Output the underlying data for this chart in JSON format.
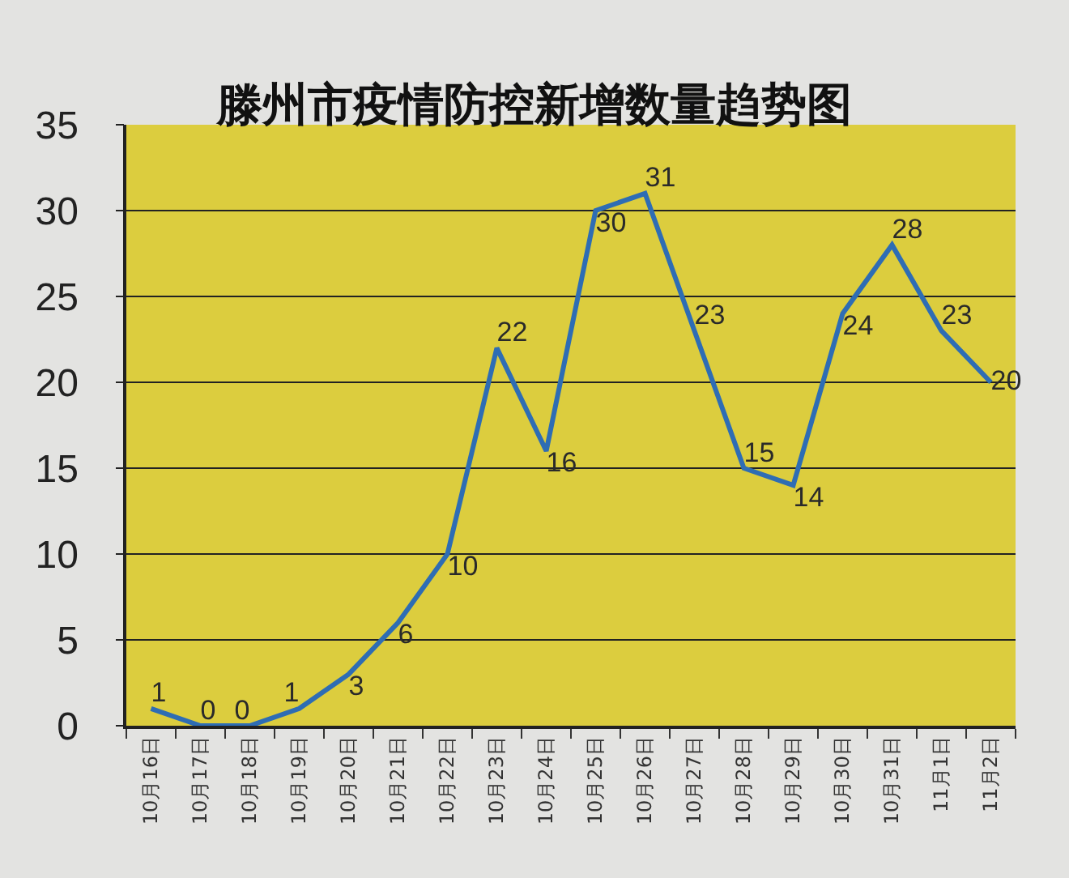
{
  "chart_data": {
    "type": "line",
    "title": "滕州市疫情防控新增数量趋势图",
    "categories": [
      "10月16日",
      "10月17日",
      "10月18日",
      "10月19日",
      "10月20日",
      "10月21日",
      "10月22日",
      "10月23日",
      "10月24日",
      "10月25日",
      "10月26日",
      "10月27日",
      "10月28日",
      "10月29日",
      "10月30日",
      "10月31日",
      "11月1日",
      "11月2日"
    ],
    "series": [
      {
        "color": "#2e6db4",
        "values": [
          1,
          0,
          0,
          1,
          3,
          6,
          10,
          22,
          16,
          30,
          31,
          23,
          15,
          14,
          24,
          28,
          23,
          20
        ]
      }
    ],
    "ylim": [
      0,
      35
    ],
    "yticks": [
      0,
      5,
      10,
      15,
      20,
      25,
      30,
      35
    ],
    "grid": "y",
    "data_labels": true,
    "marker": "none",
    "line_style": "solid"
  }
}
